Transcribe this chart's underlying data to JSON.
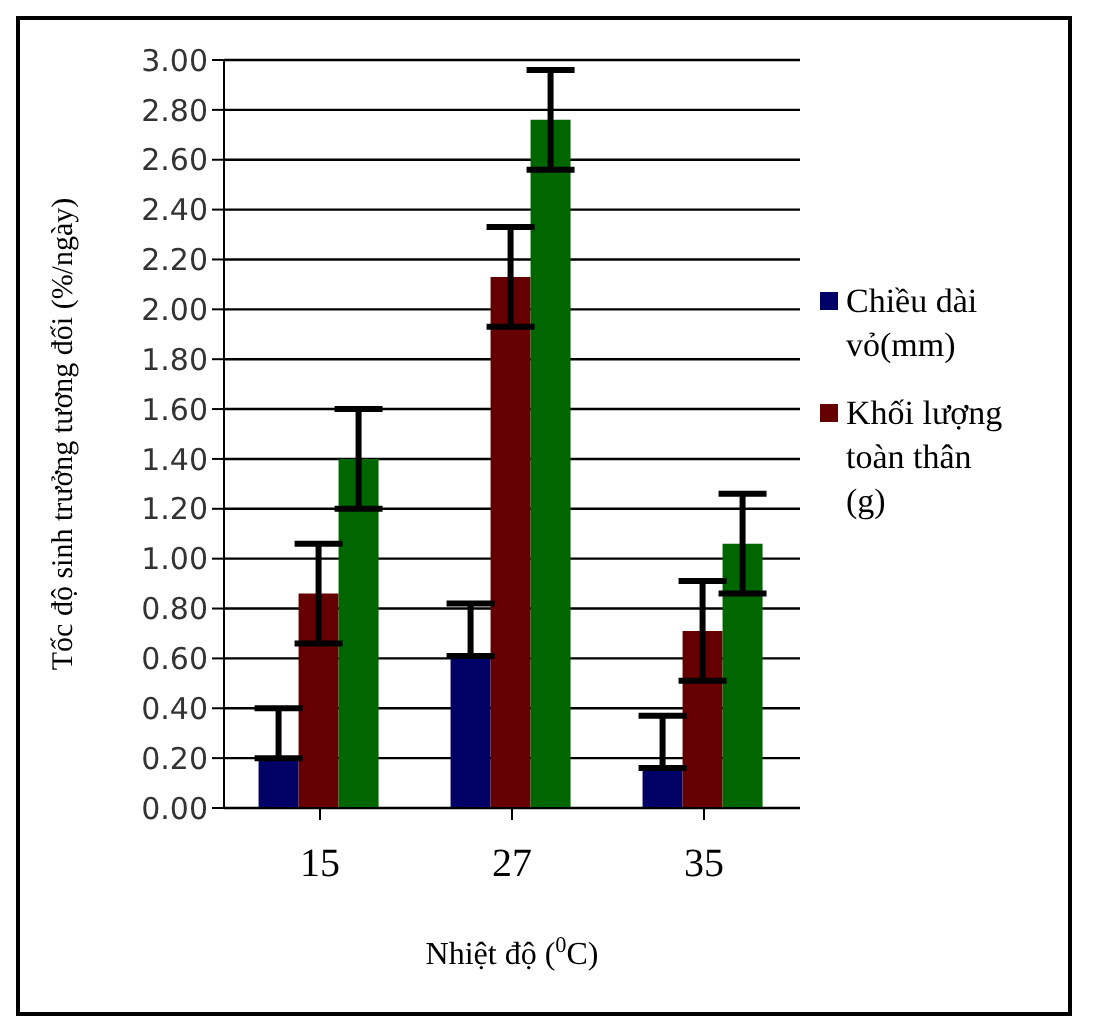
{
  "chart_data": {
    "type": "bar",
    "xlabel": "Nhiệt độ ($^{0}$C)",
    "ylabel": "Tốc độ sinh trưởng tương đối (%/ngày)",
    "categories": [
      "15",
      "27",
      "35"
    ],
    "series": [
      {
        "name": "Chiều dài vỏ(mm)",
        "color": "#000066",
        "values": [
          0.2,
          0.61,
          0.16
        ],
        "errors": [
          [
            0.2,
            0.4
          ],
          [
            0.61,
            0.82
          ],
          [
            0.16,
            0.37
          ]
        ]
      },
      {
        "name": "Khối lượng toàn thân (g)",
        "color": "#660000",
        "values": [
          0.86,
          2.13,
          0.71
        ],
        "errors": [
          0.2,
          0.2,
          0.2
        ]
      },
      {
        "color": "#006600",
        "values": [
          1.4,
          2.76,
          1.06
        ],
        "errors": [
          0.2,
          0.2,
          0.2
        ]
      }
    ],
    "ylim": [
      0,
      3
    ],
    "yticks": [
      {
        "value": 0,
        "label": "0.00"
      },
      {
        "value": 0.2,
        "label": "0.20"
      },
      {
        "value": 0.4,
        "label": "0.40"
      },
      {
        "value": 0.6,
        "label": "0.60"
      },
      {
        "value": 0.8,
        "label": "0.80"
      },
      {
        "value": 1,
        "label": "1.00"
      },
      {
        "value": 1.2,
        "label": "1.20"
      },
      {
        "value": 1.4,
        "label": "1.40"
      },
      {
        "value": 1.6,
        "label": "1.60"
      },
      {
        "value": 1.8,
        "label": "1.80"
      },
      {
        "value": 2,
        "label": "2.00"
      },
      {
        "value": 2.2,
        "label": "2.20"
      },
      {
        "value": 2.4,
        "label": "2.40"
      },
      {
        "value": 2.6,
        "label": "2.60"
      },
      {
        "value": 2.8,
        "label": "2.80"
      },
      {
        "value": 3,
        "label": "3.00"
      }
    ],
    "grid": "y",
    "legend": "right"
  }
}
